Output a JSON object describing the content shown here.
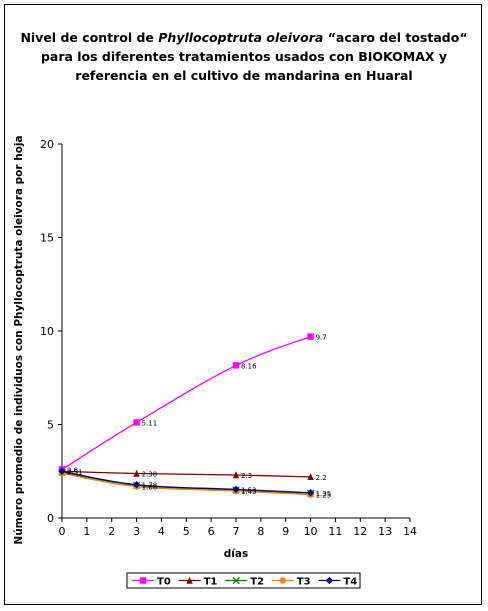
{
  "chart_data": {
    "type": "line",
    "title_parts": {
      "line1_before": "Nivel de control de ",
      "line1_italic": "Phyllocoptruta oleivora",
      "line1_after": " “acaro del tostado“",
      "line2": "para los diferentes tratamientos usados con BIOKOMAX y",
      "line3": "referencia en el cultivo de mandarina  en Huaral"
    },
    "xlabel": "días",
    "ylabel": "Número promedio de individuos con Phyllocoptruta oleivora  por hoja",
    "xlim": [
      0,
      14
    ],
    "ylim": [
      0,
      20
    ],
    "xticks": [
      0,
      1,
      2,
      3,
      4,
      5,
      6,
      7,
      8,
      9,
      10,
      11,
      12,
      13,
      14
    ],
    "yticks": [
      0,
      5,
      10,
      15,
      20
    ],
    "grid": false,
    "legend_position": "bottom",
    "series": [
      {
        "name": "T0",
        "color": "#ff00ff",
        "marker": "square",
        "x": [
          0,
          3,
          7,
          10
        ],
        "y": [
          2.6,
          5.11,
          8.16,
          9.7
        ],
        "labels": [
          "2.6",
          "5.11",
          "8.16",
          "9.7"
        ]
      },
      {
        "name": "T1",
        "color": "#800000",
        "marker": "triangle",
        "x": [
          0,
          3,
          7,
          10
        ],
        "y": [
          2.5,
          2.38,
          2.3,
          2.2
        ],
        "labels": [
          "2.5",
          "2.38",
          "2.3",
          "2.2"
        ]
      },
      {
        "name": "T2",
        "color": "#008000",
        "marker": "x",
        "x": [
          0,
          3,
          7,
          10
        ],
        "y": [
          2.45,
          1.75,
          1.5,
          1.32
        ],
        "labels": [
          "",
          "",
          "",
          ""
        ]
      },
      {
        "name": "T3",
        "color": "#ff8000",
        "marker": "circle",
        "x": [
          0,
          3,
          7,
          10
        ],
        "y": [
          2.4,
          1.68,
          1.45,
          1.25
        ],
        "labels": [
          "",
          "1.68",
          "1.45",
          "1.25"
        ]
      },
      {
        "name": "T4",
        "color": "#000080",
        "marker": "diamond",
        "x": [
          0,
          3,
          7,
          10
        ],
        "y": [
          2.5,
          1.78,
          1.53,
          1.35
        ],
        "labels": [
          "2.51",
          "1.78",
          "1.53",
          "1.35"
        ]
      }
    ]
  }
}
